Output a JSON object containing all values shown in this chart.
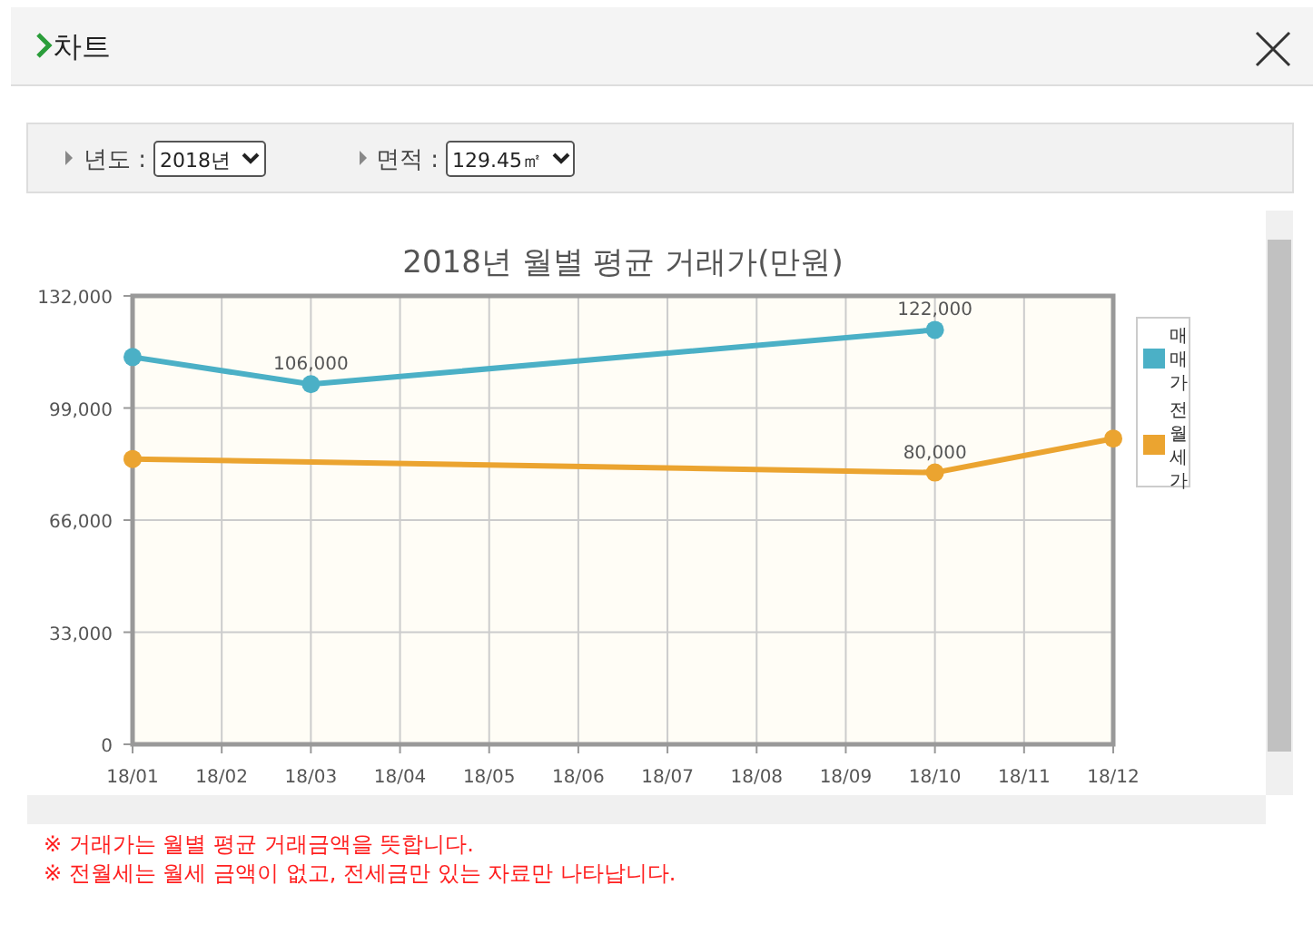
{
  "chart_data": {
    "type": "line",
    "title": "2018년 월별 평균 거래가(만원)",
    "categories": [
      "18/01",
      "18/02",
      "18/03",
      "18/04",
      "18/05",
      "18/06",
      "18/07",
      "18/08",
      "18/09",
      "18/10",
      "18/11",
      "18/12"
    ],
    "series": [
      {
        "name": "매매가",
        "color": "#4bb0c6",
        "values": [
          114000,
          null,
          106000,
          null,
          null,
          null,
          null,
          null,
          null,
          122000,
          null,
          null
        ],
        "value_labels": [
          null,
          null,
          "106,000",
          null,
          null,
          null,
          null,
          null,
          null,
          "122,000",
          null,
          null
        ]
      },
      {
        "name": "전월세가",
        "color": "#eba430",
        "values": [
          84000,
          null,
          null,
          null,
          null,
          null,
          null,
          null,
          null,
          80000,
          null,
          90000
        ],
        "value_labels": [
          null,
          null,
          null,
          null,
          null,
          null,
          null,
          null,
          null,
          "80,000",
          null,
          null
        ]
      }
    ],
    "ylim": [
      0,
      132000
    ],
    "yticks": [
      0,
      {
        "value": 33000,
        "label": "33,000"
      },
      {
        "value": 66000,
        "label": "66,000"
      },
      {
        "value": 99000,
        "label": "99,000"
      },
      {
        "value": 132000,
        "label": "132,000"
      }
    ],
    "grid": true,
    "legend": "right",
    "marker": "circle",
    "line_style": "solid",
    "annotations": [
      "차트",
      "년도 :",
      "2018년",
      "면적 :",
      "129.45㎡",
      "※ 거래가는 월별 평균 거래금액을 뜻합니다.",
      "※ 전월세는 월세 금액이 없고, 전세금만 있는 자료만 나타납니다."
    ]
  }
}
